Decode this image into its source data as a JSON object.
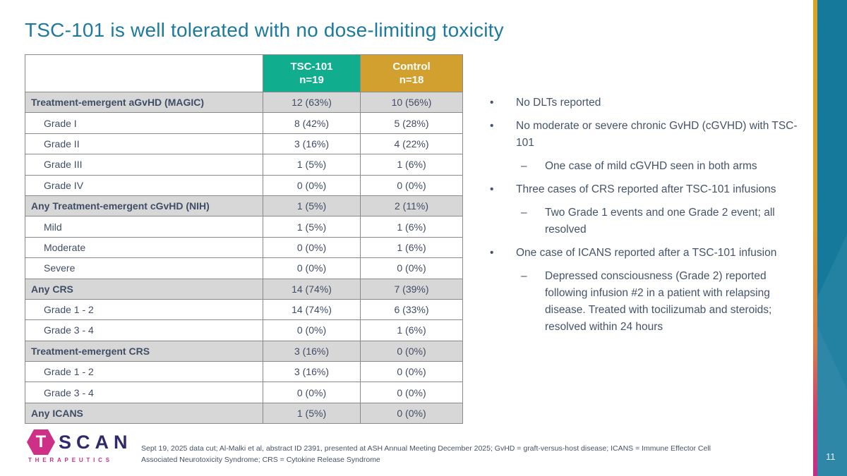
{
  "slide": {
    "title": "TSC-101 is well tolerated with no dose-limiting toxicity",
    "page_number": "11"
  },
  "table": {
    "columns": [
      {
        "label": "TSC-101",
        "sub": "n=19",
        "color": "#10ae8e"
      },
      {
        "label": "Control",
        "sub": "n=18",
        "color": "#d2a02e"
      }
    ],
    "rows": [
      {
        "label": "Treatment-emergent aGvHD (MAGIC)",
        "tsc101": "12 (63%)",
        "control": "10 (56%)",
        "category": true
      },
      {
        "label": "Grade I",
        "tsc101": "8 (42%)",
        "control": "5 (28%)",
        "category": false
      },
      {
        "label": "Grade II",
        "tsc101": "3 (16%)",
        "control": "4 (22%)",
        "category": false
      },
      {
        "label": "Grade III",
        "tsc101": "1 (5%)",
        "control": "1 (6%)",
        "category": false
      },
      {
        "label": "Grade IV",
        "tsc101": "0 (0%)",
        "control": "0 (0%)",
        "category": false
      },
      {
        "label": "Any Treatment-emergent cGvHD (NIH)",
        "tsc101": "1 (5%)",
        "control": "2 (11%)",
        "category": true
      },
      {
        "label": "Mild",
        "tsc101": "1 (5%)",
        "control": "1 (6%)",
        "category": false
      },
      {
        "label": "Moderate",
        "tsc101": "0 (0%)",
        "control": "1 (6%)",
        "category": false
      },
      {
        "label": "Severe",
        "tsc101": "0 (0%)",
        "control": "0 (0%)",
        "category": false
      },
      {
        "label": "Any CRS",
        "tsc101": "14 (74%)",
        "control": "7 (39%)",
        "category": true
      },
      {
        "label": "Grade 1 - 2",
        "tsc101": "14 (74%)",
        "control": "6 (33%)",
        "category": false
      },
      {
        "label": "Grade 3 - 4",
        "tsc101": "0 (0%)",
        "control": "1 (6%)",
        "category": false
      },
      {
        "label": "Treatment-emergent CRS",
        "tsc101": "3 (16%)",
        "control": "0 (0%)",
        "category": true
      },
      {
        "label": "Grade 1 - 2",
        "tsc101": "3 (16%)",
        "control": "0 (0%)",
        "category": false
      },
      {
        "label": "Grade 3 - 4",
        "tsc101": "0 (0%)",
        "control": "0 (0%)",
        "category": false
      },
      {
        "label": "Any ICANS",
        "tsc101": "1 (5%)",
        "control": "0 (0%)",
        "category": true
      }
    ]
  },
  "bullets": [
    {
      "text": "No DLTs reported",
      "sub": []
    },
    {
      "text": "No moderate or severe chronic GvHD (cGVHD) with TSC-101",
      "sub": [
        "One case of mild cGVHD seen in both arms"
      ]
    },
    {
      "text": "Three cases of CRS reported after TSC-101 infusions",
      "sub": [
        "Two Grade 1 events and one Grade 2 event; all resolved"
      ]
    },
    {
      "text": "One case of ICANS reported after a TSC-101 infusion",
      "sub": [
        "Depressed consciousness (Grade 2) reported following infusion #2 in a patient with relapsing disease. Treated with tocilizumab and steroids; resolved within 24 hours"
      ]
    }
  ],
  "markers": {
    "bullet": "•",
    "dash": "–"
  },
  "footer": {
    "logo": {
      "t": "T",
      "scan": "SCAN",
      "therapeutics": "THERAPEUTICS"
    },
    "note": "Sept 19, 2025 data cut; Al-Malki et al, abstract ID 2391, presented at ASH Annual Meeting December 2025; GvHD = graft-versus-host disease; ICANS = Immune Effector Cell Associated Neurotoxicity Syndrome; CRS = Cytokine Release Syndrome"
  },
  "colors": {
    "title": "#1d7a9e",
    "tsc101_header": "#10ae8e",
    "control_header": "#d2a02e",
    "shaded_row": "#d7d7d7",
    "body_text": "#44546a",
    "band_teal": "#15799c",
    "stripe_gold": "#d9a425",
    "stripe_pink": "#c42e85",
    "logo_navy": "#2f2a6b",
    "logo_pink": "#ce2f87"
  }
}
